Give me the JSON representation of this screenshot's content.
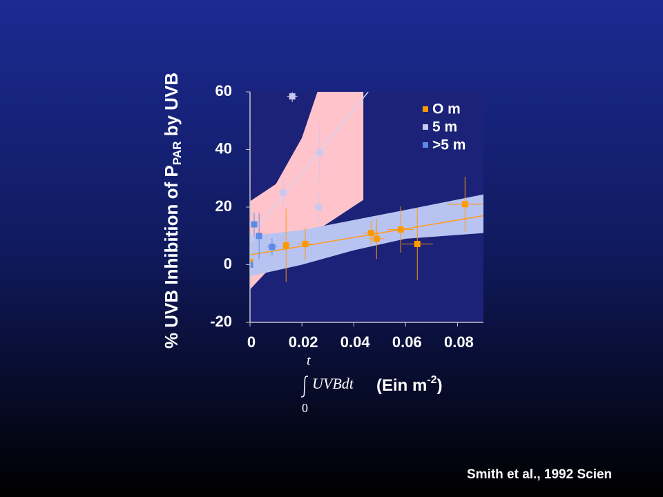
{
  "chart_data": {
    "type": "scatter",
    "ylabel": "% UVB Inhibition of P",
    "ylabel_sub": "PAR",
    "ylabel_end": " by UVB",
    "xlabel_upper": "t",
    "xlabel_integrand": "UVBdt",
    "xlabel_lower": "0",
    "xlabel_unit": "(Ein m",
    "xlabel_sup": "-2",
    "xlabel_close": ")",
    "citation": "Smith et al., 1992 Scien",
    "xlim": [
      0,
      0.09
    ],
    "xticks": [
      0,
      0.02,
      0.04,
      0.06,
      0.08
    ],
    "ylim": [
      -20,
      60
    ],
    "yticks": [
      -20,
      0,
      20,
      40,
      60
    ],
    "legend": "upper right",
    "bands": [
      {
        "color": "#ffc3cc",
        "x": [
          0,
          0.01,
          0.02,
          0.026,
          0.0437
        ],
        "upper": [
          22,
          28,
          44,
          60,
          60
        ],
        "lower": [
          -8.6,
          1,
          8,
          12,
          22.5
        ]
      },
      {
        "color": "#b9c3f2",
        "x": [
          0,
          0.02,
          0.04,
          0.06,
          0.09
        ],
        "upper": [
          10,
          12,
          15.5,
          19,
          24.4
        ],
        "lower": [
          -4,
          0,
          5,
          9,
          11
        ]
      }
    ],
    "fits": [
      {
        "color": "#ff9a1a",
        "x": [
          0,
          0.09
        ],
        "values": [
          3.4,
          17
        ]
      },
      {
        "color": "#d4d4f4",
        "x": [
          0,
          0.0456
        ],
        "values": [
          10,
          60
        ]
      }
    ],
    "series": [
      {
        "name": "O m",
        "color": "#ff9900",
        "x": [
          0,
          0.0139,
          0.0213,
          0.0467,
          0.0488,
          0.0581,
          0.0645,
          0.0829
        ],
        "values": [
          1,
          6.7,
          7.2,
          11,
          9,
          12.2,
          7.2,
          21
        ],
        "yerr": [
          1,
          12.7,
          5.6,
          4,
          7,
          8,
          12.5,
          9.5
        ],
        "xerr": [
          0.001,
          0.001,
          0.003,
          0.003,
          0.003,
          0.005,
          0.006,
          0.007
        ]
      },
      {
        "name": "5 m",
        "color": "#c8c8f0",
        "x": [
          0.0163,
          0.0269,
          0.0264,
          0.0128,
          0.0005,
          0.0085
        ],
        "values": [
          58.4,
          39,
          20,
          25,
          9,
          6.2
        ],
        "yerr": [
          2,
          10,
          5,
          5,
          2,
          2
        ],
        "xerr": [
          0.002,
          0.002,
          0.002,
          0.002,
          0.001,
          0.001
        ]
      },
      {
        "name": ">5 m",
        "color": "#5b8be6",
        "x": [
          0.0016,
          0.0035,
          0.0085,
          0
        ],
        "values": [
          14,
          10,
          6.2,
          0
        ],
        "yerr": [
          4,
          8,
          3,
          1
        ],
        "xerr": [
          0.001,
          0.001,
          0.002,
          0.001
        ]
      }
    ]
  }
}
